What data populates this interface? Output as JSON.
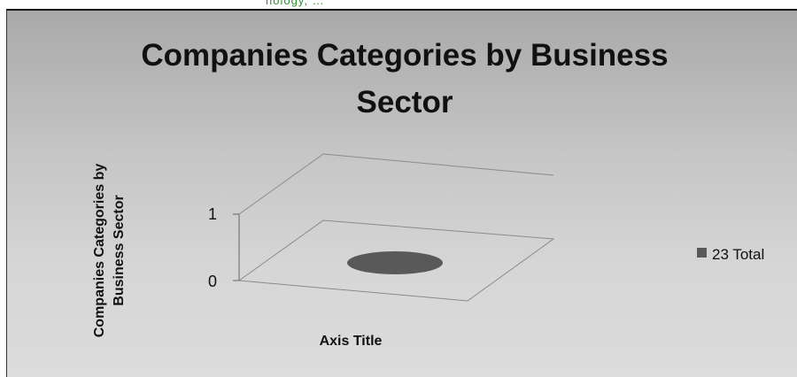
{
  "header_fragment": "nology, …",
  "chart_data": {
    "type": "bar",
    "style": "3d",
    "title": "Companies Categories by Business Sector",
    "categories": [
      ""
    ],
    "series": [
      {
        "name": "23 Total",
        "values": [
          0
        ],
        "color": "#595959"
      }
    ],
    "xlabel": "Axis Title",
    "ylabel": "Companies Categories by Business Sector",
    "yticks": [
      "0",
      "1"
    ],
    "ylim": [
      0,
      1
    ],
    "grid": false,
    "legend_position": "right",
    "background": "gray gradient"
  }
}
